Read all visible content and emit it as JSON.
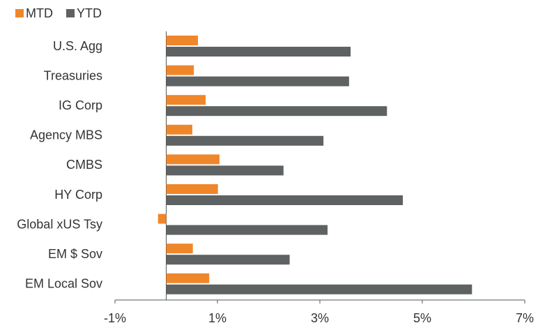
{
  "chart_data": {
    "type": "bar",
    "orientation": "horizontal",
    "legend": "top-left",
    "categories": [
      "U.S. Agg",
      "Treasuries",
      "IG Corp",
      "Agency MBS",
      "CMBS",
      "HY Corp",
      "Global xUS Tsy",
      "EM $ Sov",
      "EM Local Sov"
    ],
    "series": [
      {
        "name": "MTD",
        "color": "#f0862a",
        "values": [
          0.62,
          0.54,
          0.77,
          0.51,
          1.04,
          1.01,
          -0.16,
          0.52,
          0.84
        ]
      },
      {
        "name": "YTD",
        "color": "#5f6262",
        "values": [
          3.6,
          3.57,
          4.31,
          3.07,
          2.29,
          4.62,
          3.15,
          2.41,
          5.97
        ]
      }
    ],
    "xlim": [
      -1,
      7
    ],
    "xticks": [
      {
        "value": -1,
        "label": "-1%"
      },
      {
        "value": 1,
        "label": "1%"
      },
      {
        "value": 3,
        "label": "3%"
      },
      {
        "value": 5,
        "label": "5%"
      },
      {
        "value": 7,
        "label": "7%"
      }
    ]
  }
}
